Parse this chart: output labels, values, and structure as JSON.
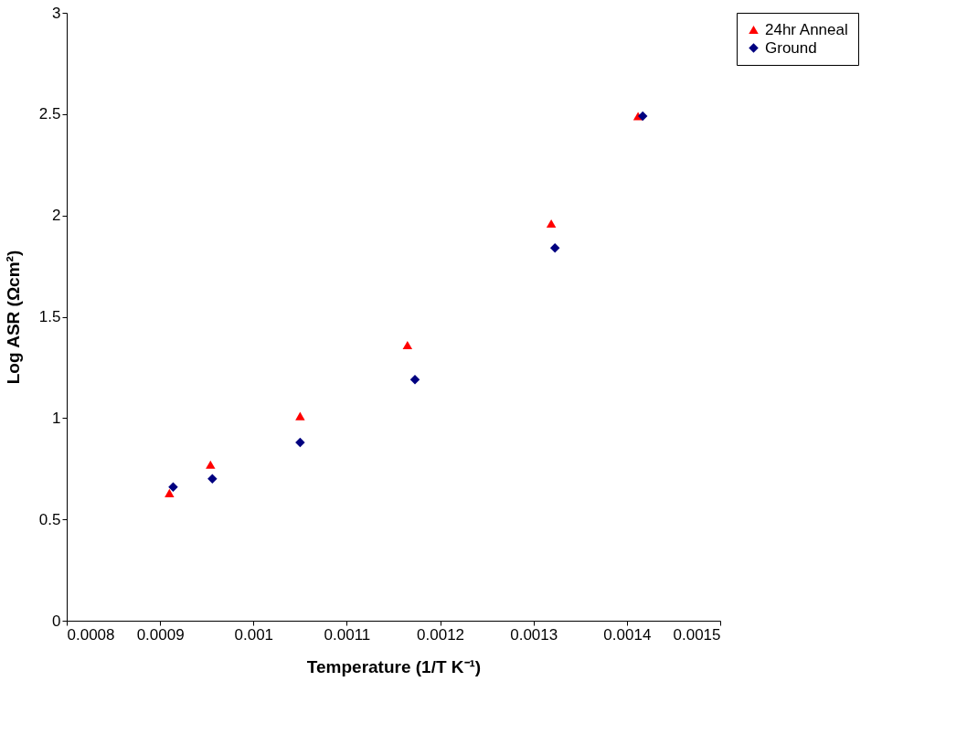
{
  "chart_data": {
    "type": "scatter",
    "xlabel": "Temperature (1/T K⁻¹)",
    "ylabel": "Log ASR (Ωcm²)",
    "xlim": [
      0.0008,
      0.0015
    ],
    "xticks": [
      0.0008,
      0.0009,
      0.001,
      0.0011,
      0.0012,
      0.0013,
      0.0014,
      0.0015
    ],
    "ylim": [
      0,
      3
    ],
    "yticks": [
      0,
      0.5,
      1,
      1.5,
      2,
      2.5,
      3
    ],
    "grid": false,
    "legend": "right",
    "series": [
      {
        "name": "24hr Anneal",
        "color": "#ff0000",
        "marker": "triangle",
        "x": [
          0.00091,
          0.000954,
          0.00105,
          0.001165,
          0.001319,
          0.001412
        ],
        "values": [
          0.63,
          0.77,
          1.01,
          1.36,
          1.96,
          2.49
        ]
      },
      {
        "name": "Ground",
        "color": "#000080",
        "marker": "diamond",
        "x": [
          0.000914,
          0.000956,
          0.00105,
          0.001173,
          0.001323,
          0.001417
        ],
        "values": [
          0.66,
          0.7,
          0.88,
          1.19,
          1.84,
          2.49
        ]
      }
    ]
  }
}
